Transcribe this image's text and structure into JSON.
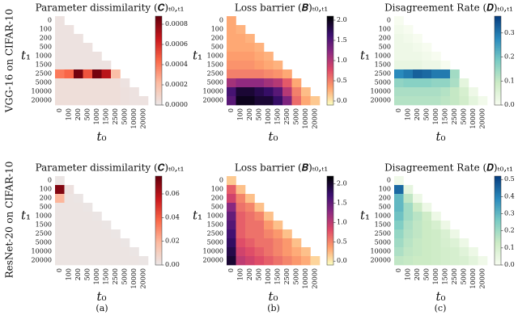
{
  "row_labels": [
    "VGG-16 on CIFAR-10",
    "ResNet-20 on CIFAR-10"
  ],
  "panel_labels": [
    "(a)",
    "(b)",
    "(c)"
  ],
  "chart_data": [
    {
      "type": "heatmap",
      "title": "Parameter dissimilarity (𝑪)ₜ₀,ₜ₁",
      "xlabel": "𝑡₀",
      "ylabel": "𝑡₁",
      "x": [
        "0",
        "100",
        "200",
        "500",
        "1000",
        "1500",
        "2500",
        "5000",
        "10000",
        "20000"
      ],
      "y": [
        "0",
        "100",
        "200",
        "500",
        "1000",
        "1500",
        "2500",
        "5000",
        "10000",
        "20000"
      ],
      "values": [
        [
          2e-05
        ],
        [
          2e-05,
          2e-05
        ],
        [
          2e-05,
          2e-05,
          2e-05
        ],
        [
          2e-05,
          2e-05,
          2e-05,
          2e-05
        ],
        [
          2e-05,
          2e-05,
          2e-05,
          2e-05,
          2e-05
        ],
        [
          2e-05,
          2e-05,
          2e-05,
          2e-05,
          2e-05,
          2e-05
        ],
        [
          0.0004,
          0.00045,
          0.00085,
          0.0005,
          0.00085,
          0.0007,
          0.0002
        ],
        [
          4e-05,
          4e-05,
          4e-05,
          4e-05,
          4e-05,
          4e-05,
          4e-05,
          2e-05
        ],
        [
          4e-05,
          4e-05,
          4e-05,
          4e-05,
          4e-05,
          4e-05,
          4e-05,
          3e-05,
          2e-05
        ],
        [
          4e-05,
          4e-05,
          4e-05,
          4e-05,
          4e-05,
          4e-05,
          4e-05,
          3e-05,
          2e-05,
          2e-05
        ]
      ],
      "zlim": [
        0,
        0.00088
      ],
      "zticks": [
        {
          "value": 0,
          "label": "0.0000"
        },
        0.0002,
        0.0004,
        0.0006,
        0.0008
      ],
      "colors": [
        "#ebe6e6",
        "#fcbba1",
        "#fb6a4a",
        "#cb181d",
        "#67000d"
      ]
    },
    {
      "type": "heatmap",
      "title": "Loss barrier (𝑩)ₜ₀,ₜ₁",
      "xlabel": "𝑡₀",
      "ylabel": "𝑡₁",
      "x": [
        "0",
        "100",
        "200",
        "500",
        "1000",
        "1500",
        "2500",
        "5000",
        "10000",
        "20000"
      ],
      "y": [
        "0",
        "100",
        "200",
        "500",
        "1000",
        "1500",
        "2500",
        "5000",
        "10000",
        "20000"
      ],
      "values": [
        [
          0.3
        ],
        [
          0.3,
          0.25
        ],
        [
          0.3,
          0.3,
          0.25
        ],
        [
          0.3,
          0.3,
          0.3,
          0.25
        ],
        [
          0.35,
          0.35,
          0.35,
          0.3,
          0.25
        ],
        [
          0.4,
          0.4,
          0.4,
          0.35,
          0.3,
          0.25
        ],
        [
          0.5,
          0.5,
          0.5,
          0.5,
          0.45,
          0.4,
          0.3
        ],
        [
          1.1,
          1.2,
          1.2,
          1.2,
          1.1,
          1.0,
          0.7,
          0.3
        ],
        [
          1.6,
          1.9,
          1.9,
          1.8,
          1.7,
          1.5,
          1.0,
          0.5,
          0.2
        ],
        [
          1.5,
          2.0,
          2.0,
          1.9,
          1.9,
          1.7,
          1.3,
          0.6,
          0.3,
          0.15
        ]
      ],
      "zlim": [
        -0.1,
        2.1
      ],
      "zticks": [
        {
          "value": 0,
          "label": "0.0"
        },
        0.5,
        {
          "value": 1,
          "label": "1.0"
        },
        1.5,
        {
          "value": 2,
          "label": "2.0"
        }
      ],
      "colors": [
        "#fcfdbf",
        "#fe9f6d",
        "#de4968",
        "#8c2981",
        "#3b0f70",
        "#000004"
      ]
    },
    {
      "type": "heatmap",
      "title": "Disagreement Rate (𝑫)ₜ₀,ₜ₁",
      "xlabel": "𝑡₀",
      "ylabel": "𝑡₁",
      "x": [
        "0",
        "100",
        "200",
        "500",
        "1000",
        "1500",
        "2500",
        "5000",
        "10000",
        "20000"
      ],
      "y": [
        "0",
        "100",
        "200",
        "500",
        "1000",
        "1500",
        "2500",
        "5000",
        "10000",
        "20000"
      ],
      "values": [
        [
          0
        ],
        [
          0.01,
          0
        ],
        [
          0.02,
          0.01,
          0
        ],
        [
          0.02,
          0.02,
          0.01,
          0
        ],
        [
          0.02,
          0.02,
          0.02,
          0.01,
          0
        ],
        [
          0.03,
          0.03,
          0.03,
          0.02,
          0.02,
          0
        ],
        [
          0.28,
          0.3,
          0.33,
          0.32,
          0.3,
          0.3,
          0.14
        ],
        [
          0.16,
          0.17,
          0.17,
          0.17,
          0.16,
          0.16,
          0.13,
          0.04
        ],
        [
          0.13,
          0.13,
          0.13,
          0.13,
          0.13,
          0.12,
          0.1,
          0.07,
          0.02
        ],
        [
          0.12,
          0.12,
          0.12,
          0.12,
          0.12,
          0.11,
          0.1,
          0.08,
          0.04,
          0.01
        ]
      ],
      "zlim": [
        0,
        0.37
      ],
      "zticks": [
        {
          "value": 0,
          "label": "0.0"
        },
        0.1,
        0.2,
        0.3
      ],
      "colors": [
        "#f7fcf0",
        "#ccebc5",
        "#7bccc4",
        "#2b8cbe",
        "#084081"
      ]
    },
    {
      "type": "heatmap",
      "title": "Parameter dissimilarity (𝑪)ₜ₀,ₜ₁",
      "xlabel": "𝑡₀",
      "ylabel": "𝑡₁",
      "x": [
        "0",
        "100",
        "200",
        "500",
        "1000",
        "1500",
        "2500",
        "5000",
        "10000",
        "20000"
      ],
      "y": [
        "0",
        "100",
        "200",
        "500",
        "1000",
        "1500",
        "2500",
        "5000",
        "10000",
        "20000"
      ],
      "values": [
        [
          0.0005
        ],
        [
          0.07,
          0.002
        ],
        [
          0.02,
          0.001,
          0.0005
        ],
        [
          0.001,
          0.001,
          0.001,
          0.0005
        ],
        [
          0.001,
          0.001,
          0.001,
          0.001,
          0.0005
        ],
        [
          0.001,
          0.001,
          0.001,
          0.001,
          0.001,
          0.0005
        ],
        [
          0.001,
          0.001,
          0.001,
          0.001,
          0.001,
          0.001,
          0.0005
        ],
        [
          0.001,
          0.001,
          0.001,
          0.001,
          0.001,
          0.001,
          0.001,
          0.0005
        ],
        [
          0.001,
          0.001,
          0.001,
          0.001,
          0.001,
          0.001,
          0.001,
          0.001,
          0.0005
        ],
        [
          0.001,
          0.001,
          0.001,
          0.001,
          0.001,
          0.001,
          0.001,
          0.001,
          0.001,
          0.0005
        ]
      ],
      "zlim": [
        0,
        0.075
      ],
      "zticks": [
        {
          "value": 0,
          "label": "0.00"
        },
        0.02,
        0.04,
        0.06
      ],
      "colors": [
        "#ebe6e6",
        "#fcbba1",
        "#fb6a4a",
        "#cb181d",
        "#67000d"
      ]
    },
    {
      "type": "heatmap",
      "title": "Loss barrier (𝑩)ₜ₀,ₜ₁",
      "xlabel": "𝑡₀",
      "ylabel": "𝑡₁",
      "x": [
        "0",
        "100",
        "200",
        "500",
        "1000",
        "1500",
        "2500",
        "5000",
        "10000",
        "20000"
      ],
      "y": [
        "0",
        "100",
        "200",
        "500",
        "1000",
        "1500",
        "2500",
        "5000",
        "10000",
        "20000"
      ],
      "values": [
        [
          0.15
        ],
        [
          0.7,
          0.2
        ],
        [
          0.9,
          0.5,
          0.2
        ],
        [
          1.3,
          0.6,
          0.5,
          0.2
        ],
        [
          1.5,
          0.7,
          0.6,
          0.5,
          0.2
        ],
        [
          1.6,
          0.7,
          0.6,
          0.6,
          0.4,
          0.2
        ],
        [
          1.7,
          0.7,
          0.6,
          0.6,
          0.5,
          0.4,
          0.2
        ],
        [
          1.8,
          0.8,
          0.7,
          0.6,
          0.6,
          0.5,
          0.4,
          0.2
        ],
        [
          1.9,
          0.9,
          0.8,
          0.7,
          0.6,
          0.5,
          0.4,
          0.3,
          0.2
        ],
        [
          2.0,
          1.0,
          0.9,
          0.8,
          0.7,
          0.6,
          0.5,
          0.4,
          0.3,
          0.1
        ]
      ],
      "zlim": [
        -0.1,
        2.2
      ],
      "zticks": [
        {
          "value": 0,
          "label": "0.0"
        },
        0.5,
        {
          "value": 1,
          "label": "1.0"
        },
        1.5,
        {
          "value": 2,
          "label": "2.0"
        }
      ],
      "colors": [
        "#fcfdbf",
        "#fe9f6d",
        "#de4968",
        "#8c2981",
        "#3b0f70",
        "#000004"
      ]
    },
    {
      "type": "heatmap",
      "title": "Disagreement Rate (𝑫)ₜ₀,ₜ₁",
      "xlabel": "𝑡₀",
      "ylabel": "𝑡₁",
      "x": [
        "0",
        "100",
        "200",
        "500",
        "1000",
        "1500",
        "2500",
        "5000",
        "10000",
        "20000"
      ],
      "y": [
        "0",
        "100",
        "200",
        "500",
        "1000",
        "1500",
        "2500",
        "5000",
        "10000",
        "20000"
      ],
      "values": [
        [
          0.02
        ],
        [
          0.45,
          0.05
        ],
        [
          0.3,
          0.15,
          0.03
        ],
        [
          0.3,
          0.2,
          0.12,
          0.03
        ],
        [
          0.28,
          0.2,
          0.16,
          0.12,
          0.03
        ],
        [
          0.25,
          0.18,
          0.15,
          0.13,
          0.1,
          0.03
        ],
        [
          0.22,
          0.17,
          0.15,
          0.13,
          0.12,
          0.09,
          0.03
        ],
        [
          0.2,
          0.16,
          0.14,
          0.13,
          0.12,
          0.1,
          0.08,
          0.03
        ],
        [
          0.18,
          0.15,
          0.14,
          0.13,
          0.12,
          0.11,
          0.1,
          0.07,
          0.03
        ],
        [
          0.15,
          0.14,
          0.13,
          0.13,
          0.12,
          0.11,
          0.1,
          0.09,
          0.06,
          0.02
        ]
      ],
      "zlim": [
        0,
        0.52
      ],
      "zticks": [
        {
          "value": 0,
          "label": "0.0"
        },
        0.1,
        0.2,
        0.3,
        0.4,
        0.5
      ],
      "colors": [
        "#f7fcf0",
        "#ccebc5",
        "#7bccc4",
        "#2b8cbe",
        "#084081"
      ]
    }
  ]
}
